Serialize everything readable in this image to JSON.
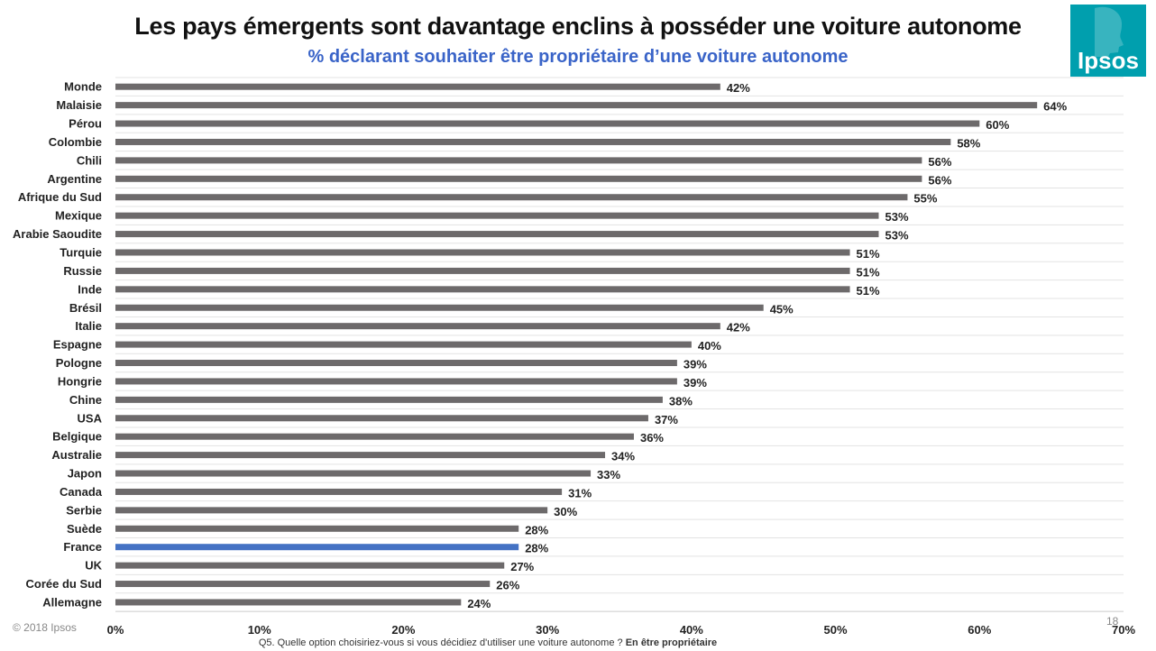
{
  "header": {
    "title": "Les pays émergents sont davantage enclins à posséder une voiture autonome",
    "subtitle": "% déclarant souhaiter être propriétaire d’une voiture autonome",
    "logo_text": "Ipsos"
  },
  "footer": {
    "copyright": "© 2018 Ipsos",
    "page_number": "18",
    "question": "Q5. Quelle option choisiriez-vous si vous décidiez d'utiliser une voiture autonome ?",
    "question_bold": "En être propriétaire"
  },
  "colors": {
    "bar": "#6d6a6b",
    "highlight": "#4472c4",
    "logo_bg": "#009fae",
    "subtitle": "#3a64c8"
  },
  "chart_data": {
    "type": "bar",
    "orientation": "horizontal",
    "categories": [
      "Monde",
      "Malaisie",
      "Pérou",
      "Colombie",
      "Chili",
      "Argentine",
      "Afrique du Sud",
      "Mexique",
      "Arabie Saoudite",
      "Turquie",
      "Russie",
      "Inde",
      "Brésil",
      "Italie",
      "Espagne",
      "Pologne",
      "Hongrie",
      "Chine",
      "USA",
      "Belgique",
      "Australie",
      "Japon",
      "Canada",
      "Serbie",
      "Suède",
      "France",
      "UK",
      "Corée du Sud",
      "Allemagne"
    ],
    "values": [
      42,
      64,
      60,
      58,
      56,
      56,
      55,
      53,
      53,
      51,
      51,
      51,
      45,
      42,
      40,
      39,
      39,
      38,
      37,
      36,
      34,
      33,
      31,
      30,
      28,
      28,
      27,
      26,
      24
    ],
    "value_labels": [
      "42%",
      "64%",
      "60%",
      "58%",
      "56%",
      "56%",
      "55%",
      "53%",
      "53%",
      "51%",
      "51%",
      "51%",
      "45%",
      "42%",
      "40%",
      "39%",
      "39%",
      "38%",
      "37%",
      "36%",
      "34%",
      "33%",
      "31%",
      "30%",
      "28%",
      "28%",
      "27%",
      "26%",
      "24%"
    ],
    "highlight": "France",
    "xlim": [
      0,
      70
    ],
    "xticks": [
      0,
      10,
      20,
      30,
      40,
      50,
      60,
      70
    ],
    "xtick_labels": [
      "0%",
      "10%",
      "20%",
      "30%",
      "40%",
      "50%",
      "60%",
      "70%"
    ],
    "grid": true,
    "legend": "none"
  }
}
